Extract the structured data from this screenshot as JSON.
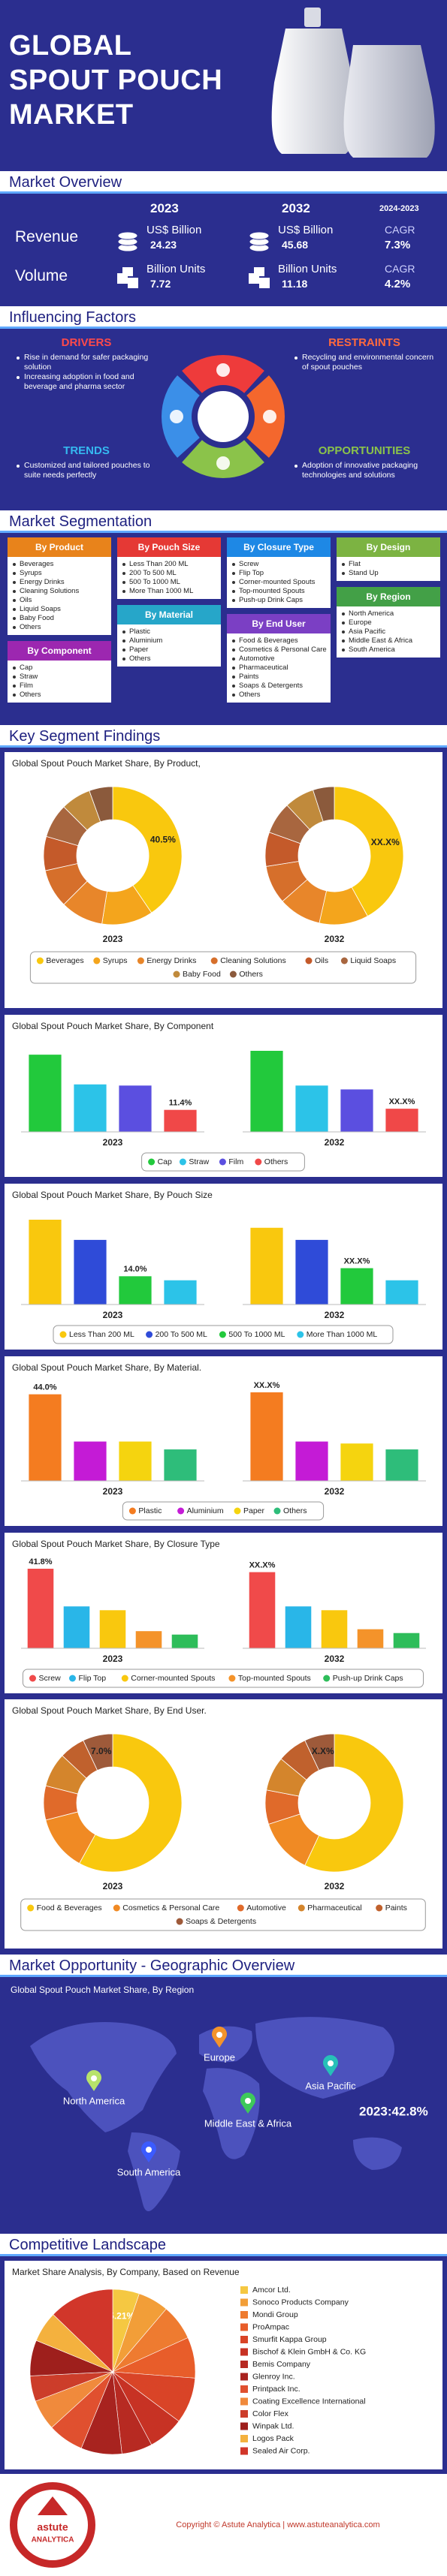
{
  "header": {
    "title_lines": [
      "GLOBAL",
      "SPOUT POUCH",
      "MARKET"
    ]
  },
  "overview": {
    "heading": "Market Overview",
    "year_1": "2023",
    "year_2": "2032",
    "cagr_period": "2024-2023",
    "rows": [
      {
        "label": "Revenue",
        "unit_1": "US$ Billion",
        "value_1": 24.23,
        "unit_2": "US$ Billion",
        "value_2": 45.68,
        "cagr_label": "CAGR",
        "cagr": "7.3%"
      },
      {
        "label": "Volume",
        "unit_1": "Billion Units",
        "value_1": 7.72,
        "unit_2": "Billion Units",
        "value_2": 11.18,
        "cagr_label": "CAGR",
        "cagr": "4.2%"
      }
    ]
  },
  "factors": {
    "heading": "Influencing Factors",
    "blocks": [
      {
        "title": "DRIVERS",
        "color": "#ff4a4a",
        "points": [
          "Rise in demand for safer packaging solution",
          "Increasing adoption in food and beverage and pharma sector"
        ]
      },
      {
        "title": "RESTRAINTS",
        "color": "#ff6a3d",
        "points": [
          "Recycling and environmental concern of spout pouches"
        ]
      },
      {
        "title": "TRENDS",
        "color": "#35b9f0",
        "points": [
          "Customized and tailored pouches to suite needs perfectly"
        ]
      },
      {
        "title": "OPPORTUNITIES",
        "color": "#8bc34a",
        "points": [
          "Adoption of innovative packaging technologies and solutions"
        ]
      }
    ]
  },
  "segmentation": {
    "heading": "Market Segmentation",
    "groups": [
      {
        "title": "By Product",
        "color": "#e8831b",
        "items": [
          "Beverages",
          "Syrups",
          "Energy Drinks",
          "Cleaning Solutions",
          "Oils",
          "Liquid Soaps",
          "Baby Food",
          "Others"
        ]
      },
      {
        "title": "By Pouch Size",
        "color": "#e53935",
        "items": [
          "Less Than 200 ML",
          "200 To 500 ML",
          "500 To 1000 ML",
          "More Than 1000 ML"
        ]
      },
      {
        "title": "By Closure Type",
        "color": "#1e88e5",
        "items": [
          "Screw",
          "Flip Top",
          "Corner-mounted Spouts",
          "Top-mounted Spouts",
          "Push-up Drink Caps"
        ]
      },
      {
        "title": "By Design",
        "color": "#7cb342",
        "items": [
          "Flat",
          "Stand Up"
        ]
      },
      {
        "title": "By Component",
        "color": "#9c27b0",
        "items": [
          "Cap",
          "Straw",
          "Film",
          "Others"
        ]
      },
      {
        "title": "By Material",
        "color": "#26a6c9",
        "items": [
          "Plastic",
          "Aluminium",
          "Paper",
          "Others"
        ]
      },
      {
        "title": "By End User",
        "color": "#7b3fc4",
        "items": [
          "Food & Beverages",
          "Cosmetics & Personal Care",
          "Automotive",
          "Pharmaceutical",
          "Paints",
          "Soaps & Detergents",
          "Others"
        ]
      },
      {
        "title": "By Region",
        "color": "#43a047",
        "items": [
          "North America",
          "Europe",
          "Asia Pacific",
          "Middle East & Africa",
          "South America"
        ]
      }
    ]
  },
  "findings": {
    "heading": "Key Segment Findings"
  },
  "chart_data": [
    {
      "type": "donut",
      "title": "Global Spout Pouch Market Share, By Product,",
      "categories": [
        "Beverages",
        "Syrups",
        "Energy Drinks",
        "Cleaning Solutions",
        "Oils",
        "Liquid Soaps",
        "Baby Food",
        "Others"
      ],
      "colors": [
        "#f9c80e",
        "#f4a51c",
        "#e8862a",
        "#d66f2b",
        "#c45a2a",
        "#a8663f",
        "#c08a3c",
        "#8b5a3c"
      ],
      "series": [
        {
          "name": "2023",
          "values": [
            40.5,
            12,
            10,
            9,
            8,
            8,
            7,
            5.5
          ],
          "value_labels": [
            "40.5%",
            null,
            null,
            null,
            null,
            null,
            null,
            null
          ]
        },
        {
          "name": "2032",
          "values": [
            42,
            11.5,
            10,
            9,
            8,
            7.5,
            7,
            5
          ],
          "annotation": "XX.X%"
        }
      ]
    },
    {
      "type": "bar",
      "title": "Global Spout Pouch Market Share, By Component",
      "categories": [
        "Cap",
        "Straw",
        "Film",
        "Others"
      ],
      "colors": [
        "#22c93c",
        "#2cc3e8",
        "#5b4fe0",
        "#f04848"
      ],
      "series": [
        {
          "name": "2023",
          "values": [
            40,
            24.6,
            24,
            11.4
          ],
          "value_labels": [
            null,
            null,
            null,
            "11.4%"
          ]
        },
        {
          "name": "2032",
          "values": [
            42,
            24,
            22,
            12
          ],
          "annotation": "XX.X%"
        }
      ]
    },
    {
      "type": "bar",
      "title": "Global Spout Pouch Market Share, By Pouch Size",
      "categories": [
        "Less Than 200 ML",
        "200 To 500 ML",
        "500 To 1000 ML",
        "More Than 1000 ML"
      ],
      "colors": [
        "#f9c80e",
        "#2f4bd8",
        "#22c93c",
        "#2cc3e8"
      ],
      "series": [
        {
          "name": "2023",
          "values": [
            42,
            32,
            14.0,
            12
          ],
          "value_labels": [
            null,
            null,
            "14.0%",
            null
          ]
        },
        {
          "name": "2032",
          "values": [
            38,
            32,
            18,
            12
          ],
          "annotation": "XX.X%"
        }
      ]
    },
    {
      "type": "bar",
      "title": "Global Spout Pouch Market Share, By Material.",
      "categories": [
        "Plastic",
        "Aluminium",
        "Paper",
        "Others"
      ],
      "colors": [
        "#f47c20",
        "#c41bd6",
        "#f5d40f",
        "#2ebd7a"
      ],
      "series": [
        {
          "name": "2023",
          "values": [
            44.0,
            20,
            20,
            16
          ],
          "value_labels": [
            "44.0%",
            null,
            null,
            null
          ]
        },
        {
          "name": "2032",
          "values": [
            45,
            20,
            19,
            16
          ],
          "annotation": "XX.X%"
        }
      ]
    },
    {
      "type": "bar",
      "title": "Global Spout Pouch Market Share, By Closure Type",
      "categories": [
        "Screw",
        "Flip Top",
        "Corner-mounted Spouts",
        "Top-mounted Spouts",
        "Push-up Drink Caps"
      ],
      "colors": [
        "#f04a4a",
        "#29b6e8",
        "#f9c80e",
        "#f4932a",
        "#2ebd5a"
      ],
      "series": [
        {
          "name": "2023",
          "values": [
            41.8,
            22,
            20,
            9,
            7.2
          ],
          "value_labels": [
            "41.8%",
            null,
            null,
            null,
            null
          ]
        },
        {
          "name": "2032",
          "values": [
            40,
            22,
            20,
            10,
            8
          ],
          "annotation": "XX.X%"
        }
      ]
    },
    {
      "type": "donut",
      "title": "Global Spout Pouch Market Share, By End User.",
      "categories": [
        "Food & Beverages",
        "Cosmetics & Personal Care",
        "Automotive",
        "Pharmaceutical",
        "Paints",
        "Soaps & Detergents"
      ],
      "colors": [
        "#f9c80e",
        "#f08a24",
        "#e06a2a",
        "#d4852c",
        "#c0612d",
        "#9e5a3a"
      ],
      "series": [
        {
          "name": "2023",
          "values": [
            58,
            13,
            8,
            8,
            6,
            7.0
          ],
          "value_labels": [
            null,
            null,
            null,
            null,
            null,
            "7.0%"
          ]
        },
        {
          "name": "2032",
          "values": [
            57,
            13,
            8,
            8,
            7,
            7
          ],
          "annotation": "X.X%"
        }
      ]
    },
    {
      "type": "pie",
      "title": "Market Share Analysis, By Company, Based on Revenue",
      "categories": [
        "Amcor Ltd.",
        "Sonoco Products Company",
        "Mondi Group",
        "ProAmpac",
        "Smurfit Kappa Group",
        "Bischof & Klein GmbH & Co. KG",
        "Bemis Company",
        "Glenroy Inc.",
        "Printpack Inc.",
        "Coating Excellence International",
        "Color Flex",
        "Winpak Ltd.",
        "Logos Pack",
        "Sealed Air Corp."
      ],
      "colors": [
        "#f5c842",
        "#f29e38",
        "#ee7b30",
        "#e85d2a",
        "#d94427",
        "#c73224",
        "#b72a22",
        "#a8231f",
        "#e0502f",
        "#f08a3c",
        "#cc3d2a",
        "#9e1f1c",
        "#f4b13e",
        "#d1362a"
      ],
      "values": [
        5.21,
        6,
        7,
        8,
        9,
        7,
        6,
        8,
        7,
        6,
        5,
        7,
        6,
        12.79
      ],
      "value_labels": [
        "5.21%",
        null,
        null,
        null,
        null,
        null,
        null,
        null,
        null,
        null,
        null,
        null,
        null,
        null
      ]
    }
  ],
  "geography": {
    "heading": "Market Opportunity - Geographic Overview",
    "title": "Global Spout Pouch Market Share, By Region",
    "regions": [
      {
        "name": "North America",
        "color": "#b7e36b"
      },
      {
        "name": "Europe",
        "color": "#f4932a"
      },
      {
        "name": "Asia Pacific",
        "color": "#27c0b8"
      },
      {
        "name": "Middle East & Africa",
        "color": "#3ec95a"
      },
      {
        "name": "South America",
        "color": "#3b5bff"
      }
    ],
    "annotation": "2023:42.8%"
  },
  "competition": {
    "heading": "Competitive Landscape"
  },
  "footer": {
    "copyright": "Copyright © Astute Analytica | www.astuteanalytica.com",
    "logo_top": "astute",
    "logo_bottom": "ANALYTICA"
  }
}
